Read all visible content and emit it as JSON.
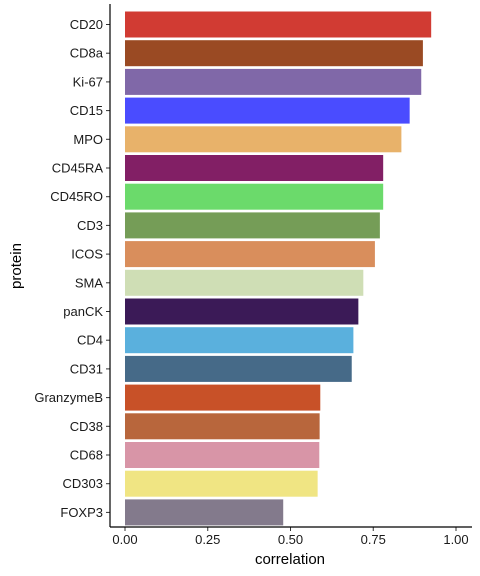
{
  "chart_data": {
    "type": "bar",
    "orientation": "horizontal",
    "title": "",
    "xlabel": "correlation",
    "ylabel": "protein",
    "xlim": [
      0,
      1
    ],
    "x_ticks": [
      "0.00",
      "0.25",
      "0.50",
      "0.75",
      "1.00"
    ],
    "x_tick_values": [
      0,
      0.25,
      0.5,
      0.75,
      1.0
    ],
    "grid": false,
    "legend": "none",
    "categories": [
      "CD20",
      "CD8a",
      "Ki-67",
      "CD15",
      "MPO",
      "CD45RA",
      "CD45RO",
      "CD3",
      "ICOS",
      "SMA",
      "panCK",
      "CD4",
      "CD31",
      "GranzymeB",
      "CD38",
      "CD68",
      "CD303",
      "FOXP3"
    ],
    "values": [
      0.925,
      0.9,
      0.895,
      0.86,
      0.835,
      0.78,
      0.78,
      0.77,
      0.755,
      0.72,
      0.705,
      0.69,
      0.685,
      0.59,
      0.588,
      0.587,
      0.582,
      0.478
    ],
    "colors": [
      "#d13b33",
      "#9a4a23",
      "#8068a8",
      "#4a4cff",
      "#e8b26a",
      "#821f65",
      "#6bda6b",
      "#759d57",
      "#d98e5c",
      "#cfdeb5",
      "#3b1a57",
      "#5ab0dd",
      "#466a88",
      "#c85128",
      "#b8663c",
      "#d895a7",
      "#f0e583",
      "#837a8c"
    ]
  }
}
